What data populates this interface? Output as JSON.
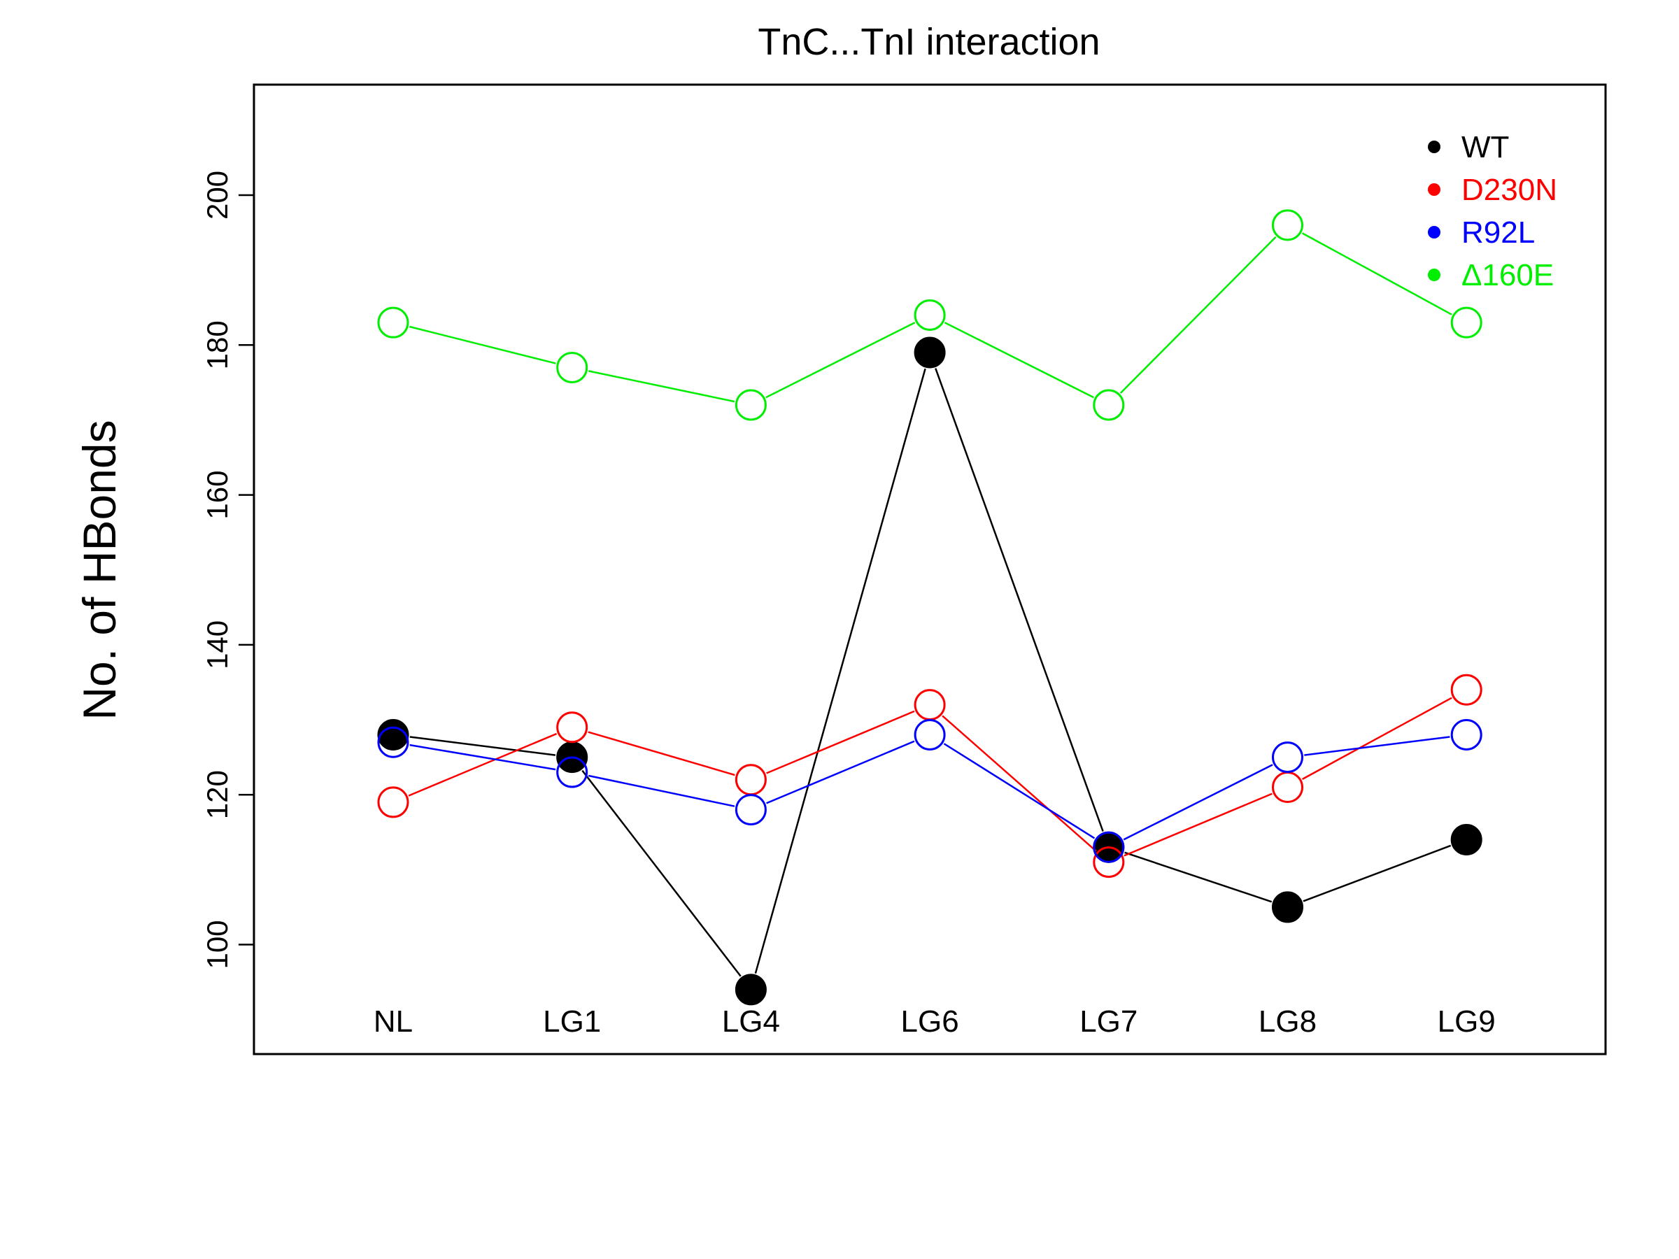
{
  "chart_data": {
    "type": "line",
    "title": "TnC...TnI interaction",
    "xlabel": "",
    "ylabel": "No. of HBonds",
    "categories": [
      "NL",
      "LG1",
      "LG4",
      "LG6",
      "LG7",
      "LG8",
      "LG9"
    ],
    "ylim": [
      87,
      217
    ],
    "yticks": [
      100,
      120,
      140,
      160,
      180,
      200
    ],
    "grid": false,
    "legend_position": "top-right",
    "series": [
      {
        "name": "WT",
        "color": "#000000",
        "marker": "filled-circle",
        "values": [
          128,
          125,
          94,
          179,
          113,
          105,
          114
        ]
      },
      {
        "name": "D230N",
        "color": "#ff0000",
        "marker": "open-circle",
        "values": [
          119,
          129,
          122,
          132,
          111,
          121,
          134
        ]
      },
      {
        "name": "R92L",
        "color": "#0000ff",
        "marker": "open-circle",
        "values": [
          127,
          123,
          118,
          128,
          113,
          125,
          128
        ]
      },
      {
        "name": "Δ160E",
        "color": "#00ee00",
        "marker": "open-circle",
        "values": [
          183,
          177,
          172,
          184,
          172,
          196,
          183
        ]
      }
    ]
  }
}
